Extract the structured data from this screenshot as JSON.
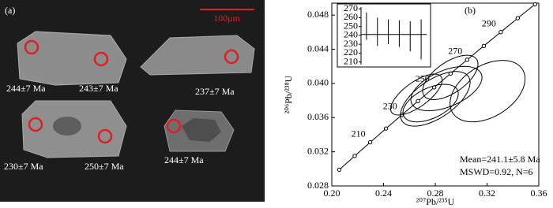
{
  "image_panel": {
    "label": "(a)",
    "scale_bar": "100μm",
    "spots": [
      "244±7 Ma",
      "243±7 Ma",
      "237±7 Ma",
      "230±7 Ma",
      "250±7 Ma",
      "244±7 Ma"
    ]
  },
  "chart_data": {
    "type": "concordia",
    "panel_label": "(b)",
    "x_label": "²⁰⁷Pb/²³⁵U",
    "y_label": "²⁰⁶Pb/²³⁸U",
    "xlim": [
      0.2,
      0.36
    ],
    "xticks": [
      {
        "value": 0.2,
        "label": "0.20"
      },
      0.24,
      0.28,
      0.32,
      0.36
    ],
    "ylim": [
      0.028,
      0.0494
    ],
    "yticks": [
      0.028,
      0.032,
      0.036,
      {
        "value": 0.04,
        "label": "0.040"
      },
      0.044,
      0.048
    ],
    "concordia": {
      "color": "#000000",
      "x": [
        0.2058,
        0.2177,
        0.2297,
        0.2419,
        0.2542,
        0.2666,
        0.2792,
        0.2918,
        0.3046,
        0.3175,
        0.3306,
        0.3437,
        0.3571
      ],
      "y": [
        0.0299,
        0.03151,
        0.03311,
        0.03472,
        0.03632,
        0.03793,
        0.03954,
        0.04116,
        0.04277,
        0.04439,
        0.04601,
        0.04764,
        0.04926
      ],
      "ages": [
        null,
        null,
        210,
        null,
        230,
        null,
        250,
        null,
        270,
        null,
        290,
        null,
        null
      ]
    },
    "ellipses": {
      "color": "#000000",
      "x": [
        0.3204,
        0.28,
        0.2764,
        0.2886,
        0.2916,
        0.2654
      ],
      "y": [
        0.0391,
        0.0382,
        0.0377,
        0.0394,
        0.0407,
        0.0387
      ],
      "x_err": [
        0.029,
        0.0269,
        0.0214,
        0.0275,
        0.0214,
        0.0199
      ],
      "y_err": [
        0.0036,
        0.0032,
        0.0022,
        0.0026,
        0.0026,
        0.0024
      ],
      "rho": [
        0.4,
        0.6,
        0.5,
        0.5,
        0.6,
        0.7
      ]
    },
    "inset": {
      "ylim": [
        207,
        272
      ],
      "yticks": [
        210,
        220,
        230,
        240,
        250,
        260,
        270
      ],
      "values": [
        250.5,
        244,
        244,
        242,
        239,
        235.5
      ],
      "errors": [
        15.5,
        16,
        14,
        15,
        17,
        22.5
      ],
      "mean": 241.1
    },
    "annotations": [
      "Mean=241.1±5.8 Ma",
      "MSWD=0.92, N=6"
    ]
  }
}
